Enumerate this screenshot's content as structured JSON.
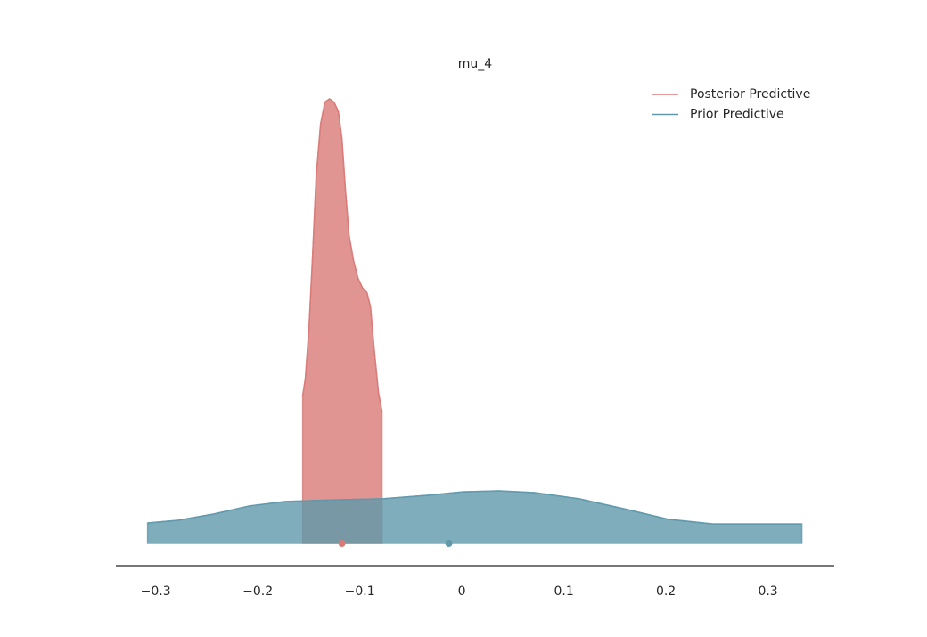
{
  "chart_data": {
    "type": "density",
    "title": "mu_4",
    "xlim": [
      -0.339,
      0.365
    ],
    "ylim": [
      0,
      28
    ],
    "xticks": [
      {
        "value": -0.3,
        "label": "−0.3"
      },
      {
        "value": -0.2,
        "label": "−0.2"
      },
      {
        "value": -0.1,
        "label": "−0.1"
      },
      0.0,
      0.1,
      0.2,
      0.3
    ],
    "legend": "upper right",
    "series": [
      {
        "name": "Posterior Predictive",
        "color": "#d97a78",
        "point_estimate": -0.1175,
        "x": [
          -0.1559,
          -0.1533,
          -0.1498,
          -0.1463,
          -0.1428,
          -0.1384,
          -0.1341,
          -0.1297,
          -0.1253,
          -0.121,
          -0.1175,
          -0.114,
          -0.1105,
          -0.1061,
          -0.1017,
          -0.0974,
          -0.093,
          -0.0895,
          -0.086,
          -0.0817,
          -0.0782
        ],
        "values": [
          9.3,
          10.4,
          13.5,
          18.0,
          23.0,
          26.4,
          27.8,
          28.0,
          27.8,
          27.2,
          25.5,
          22.2,
          19.4,
          17.8,
          16.7,
          16.1,
          15.8,
          14.9,
          12.3,
          9.5,
          8.3
        ]
      },
      {
        "name": "Prior Predictive",
        "color": "#5f99ab",
        "point_estimate": -0.0127,
        "x": [
          -0.3079,
          -0.2782,
          -0.2432,
          -0.2083,
          -0.1734,
          -0.121,
          -0.0773,
          -0.0336,
          0.0013,
          0.0362,
          0.0712,
          0.1148,
          0.1585,
          0.2022,
          0.2459,
          0.2895,
          0.3332
        ],
        "values": [
          1.29,
          1.46,
          1.85,
          2.36,
          2.64,
          2.75,
          2.81,
          3.03,
          3.25,
          3.31,
          3.2,
          2.81,
          2.19,
          1.52,
          1.23,
          1.23,
          1.23
        ]
      }
    ]
  }
}
